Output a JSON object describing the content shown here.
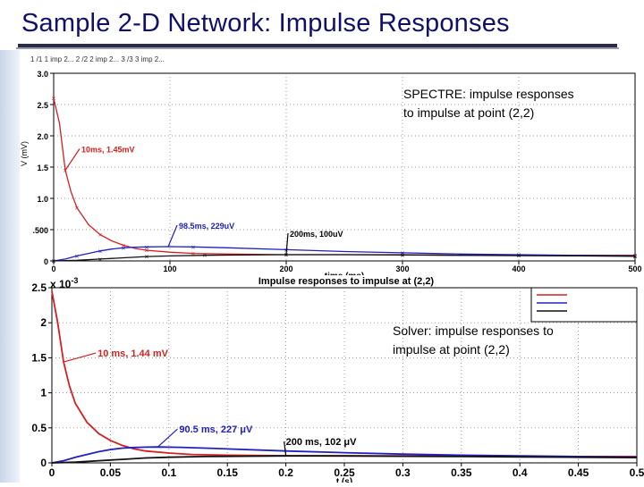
{
  "slide": {
    "title": "Sample 2-D Network: Impulse Responses",
    "spectre_note_line1": "SPECTRE: impulse responses",
    "spectre_note_line2": "to impulse at point (2,2)",
    "solver_note_line1": "Solver: impulse responses to",
    "solver_note_line2": "impulse at point (2,2)"
  },
  "colors": {
    "title": "#10106a",
    "red": "#d42020",
    "blue": "#2020c0",
    "black": "#111111"
  },
  "chart_data": [
    {
      "type": "line",
      "id": "spectre",
      "legend_tabs": "1 /1 1 imp 2...  2 /2 2 imp 2...  3 /3 3 imp 2...",
      "ylabel": "V (mV)",
      "xlabel": "time (ms)",
      "xlim": [
        0,
        500
      ],
      "ylim": [
        0,
        3.0
      ],
      "x_ticks": [
        "0",
        "100",
        "200",
        "300",
        "400",
        "500"
      ],
      "y_ticks": [
        "0",
        ".500",
        "1.0",
        "1.5",
        "2.0",
        "2.5",
        "3.0"
      ],
      "grid": true,
      "series": [
        {
          "color": "#d42020",
          "x": [
            0,
            5,
            10,
            15,
            20,
            30,
            40,
            50,
            60,
            70,
            80,
            100,
            120,
            150,
            200,
            250,
            300,
            350,
            400,
            450,
            500
          ],
          "y": [
            2.6,
            2.2,
            1.45,
            1.1,
            0.85,
            0.58,
            0.42,
            0.32,
            0.25,
            0.2,
            0.17,
            0.14,
            0.12,
            0.11,
            0.1,
            0.1,
            0.1,
            0.09,
            0.09,
            0.09,
            0.09
          ]
        },
        {
          "color": "#2020c0",
          "x": [
            0,
            10,
            20,
            30,
            40,
            50,
            60,
            70,
            80,
            98.5,
            120,
            150,
            200,
            250,
            300,
            350,
            400,
            450,
            500
          ],
          "y": [
            0,
            0.03,
            0.08,
            0.12,
            0.16,
            0.19,
            0.21,
            0.22,
            0.225,
            0.229,
            0.225,
            0.21,
            0.18,
            0.15,
            0.13,
            0.11,
            0.1,
            0.09,
            0.08
          ]
        },
        {
          "color": "#111111",
          "x": [
            0,
            20,
            40,
            60,
            80,
            100,
            130,
            160,
            200,
            250,
            300,
            350,
            400,
            450,
            500
          ],
          "y": [
            0,
            0.01,
            0.03,
            0.05,
            0.07,
            0.08,
            0.09,
            0.095,
            0.1,
            0.1,
            0.095,
            0.09,
            0.085,
            0.08,
            0.075
          ]
        }
      ],
      "annotations": [
        {
          "text": "10ms, 1.45mV",
          "x": 10,
          "y": 1.45
        },
        {
          "text": "98.5ms, 229uV",
          "x": 98.5,
          "y": 0.229
        },
        {
          "text": "200ms, 100uV",
          "x": 200,
          "y": 0.1
        }
      ]
    },
    {
      "type": "line",
      "id": "solver",
      "title": "Impulse responses to impulse at (2,2)",
      "xlabel": "t (s)",
      "exponent": "x 10",
      "exponent_power": "-3",
      "xlim": [
        0,
        0.5
      ],
      "ylim": [
        0,
        2.5
      ],
      "x_ticks": [
        "0",
        "0.05",
        "0.1",
        "0.15",
        "0.2",
        "0.25",
        "0.3",
        "0.35",
        "0.4",
        "0.45",
        "0.5"
      ],
      "y_ticks": [
        "0",
        "0.5",
        "1",
        "1.5",
        "2",
        "2.5"
      ],
      "grid": true,
      "series": [
        {
          "color": "#d42020",
          "x": [
            0,
            0.005,
            0.01,
            0.015,
            0.02,
            0.03,
            0.04,
            0.05,
            0.06,
            0.07,
            0.08,
            0.1,
            0.12,
            0.15,
            0.2,
            0.25,
            0.3,
            0.35,
            0.4,
            0.45,
            0.5
          ],
          "y": [
            2.45,
            2.0,
            1.44,
            1.1,
            0.85,
            0.58,
            0.42,
            0.32,
            0.25,
            0.2,
            0.17,
            0.14,
            0.12,
            0.11,
            0.102,
            0.1,
            0.1,
            0.095,
            0.09,
            0.09,
            0.09
          ]
        },
        {
          "color": "#2020c0",
          "x": [
            0,
            0.01,
            0.02,
            0.03,
            0.04,
            0.05,
            0.06,
            0.07,
            0.08,
            0.0905,
            0.11,
            0.14,
            0.2,
            0.25,
            0.3,
            0.35,
            0.4,
            0.45,
            0.5
          ],
          "y": [
            0,
            0.03,
            0.08,
            0.12,
            0.16,
            0.19,
            0.21,
            0.22,
            0.225,
            0.227,
            0.222,
            0.205,
            0.17,
            0.145,
            0.125,
            0.11,
            0.1,
            0.09,
            0.08
          ]
        },
        {
          "color": "#111111",
          "x": [
            0,
            0.02,
            0.04,
            0.06,
            0.08,
            0.1,
            0.13,
            0.16,
            0.2,
            0.25,
            0.3,
            0.35,
            0.4,
            0.45,
            0.5
          ],
          "y": [
            0,
            0.01,
            0.03,
            0.05,
            0.07,
            0.08,
            0.09,
            0.095,
            0.1,
            0.1,
            0.095,
            0.09,
            0.085,
            0.08,
            0.075
          ]
        }
      ],
      "annotations": [
        {
          "text": "10 ms, 1.44 mV",
          "x": 0.01,
          "y": 1.44
        },
        {
          "text": "90.5 ms, 227 μV",
          "x": 0.0905,
          "y": 0.227
        },
        {
          "text": "200 ms, 102 μV",
          "x": 0.2,
          "y": 0.102
        }
      ]
    }
  ]
}
